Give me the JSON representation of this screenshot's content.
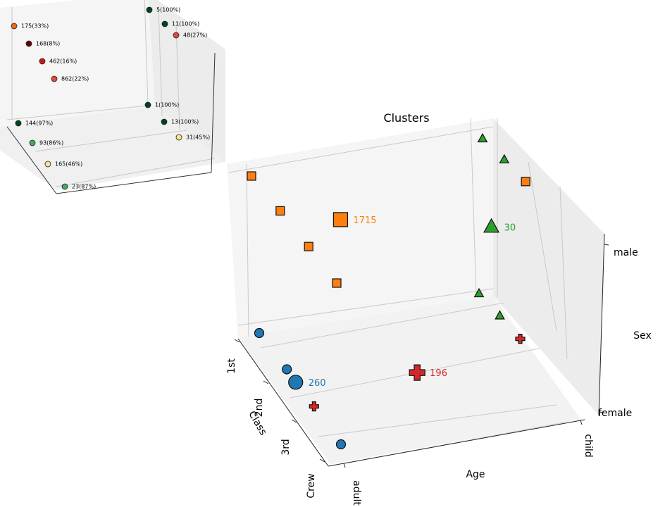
{
  "chart_data": [
    {
      "type": "scatter",
      "title": "",
      "axes": {
        "x": {
          "label": "",
          "ticks": []
        },
        "y": {
          "label": "",
          "ticks": []
        },
        "z": {
          "label": "",
          "ticks": []
        }
      },
      "points": [
        {
          "label": "5(100%)",
          "class": "1st",
          "age": "child",
          "sex": "male",
          "count": 5,
          "survival_pct": 100,
          "color": "#00441b"
        },
        {
          "label": "11(100%)",
          "class": "2nd",
          "age": "child",
          "sex": "male",
          "count": 11,
          "survival_pct": 100,
          "color": "#00441b"
        },
        {
          "label": "48(27%)",
          "class": "3rd",
          "age": "child",
          "sex": "male",
          "count": 48,
          "survival_pct": 27,
          "color": "#e34a33"
        },
        {
          "label": "175(33%)",
          "class": "1st",
          "age": "adult",
          "sex": "male",
          "count": 175,
          "survival_pct": 33,
          "color": "#f16913"
        },
        {
          "label": "168(8%)",
          "class": "2nd",
          "age": "adult",
          "sex": "male",
          "count": 168,
          "survival_pct": 8,
          "color": "#67000d"
        },
        {
          "label": "462(16%)",
          "class": "3rd",
          "age": "adult",
          "sex": "male",
          "count": 462,
          "survival_pct": 16,
          "color": "#cb181d"
        },
        {
          "label": "862(22%)",
          "class": "Crew",
          "age": "adult",
          "sex": "male",
          "count": 862,
          "survival_pct": 22,
          "color": "#e34a33"
        },
        {
          "label": "1(100%)",
          "class": "1st",
          "age": "child",
          "sex": "female",
          "count": 1,
          "survival_pct": 100,
          "color": "#00441b"
        },
        {
          "label": "13(100%)",
          "class": "2nd",
          "age": "child",
          "sex": "female",
          "count": 13,
          "survival_pct": 100,
          "color": "#00441b"
        },
        {
          "label": "31(45%)",
          "class": "3rd",
          "age": "child",
          "sex": "female",
          "count": 31,
          "survival_pct": 45,
          "color": "#fee391"
        },
        {
          "label": "144(97%)",
          "class": "1st",
          "age": "adult",
          "sex": "female",
          "count": 144,
          "survival_pct": 97,
          "color": "#00441b"
        },
        {
          "label": "93(86%)",
          "class": "2nd",
          "age": "adult",
          "sex": "female",
          "count": 93,
          "survival_pct": 86,
          "color": "#41ab5d"
        },
        {
          "label": "165(46%)",
          "class": "3rd",
          "age": "adult",
          "sex": "female",
          "count": 165,
          "survival_pct": 46,
          "color": "#fee391"
        },
        {
          "label": "23(87%)",
          "class": "Crew",
          "age": "adult",
          "sex": "female",
          "count": 23,
          "survival_pct": 87,
          "color": "#41ab5d"
        }
      ]
    },
    {
      "type": "scatter",
      "title": "Clusters",
      "axes": {
        "x": {
          "label": "Age",
          "ticks": [
            "adult",
            "child"
          ]
        },
        "y": {
          "label": "Class",
          "ticks": [
            "1st",
            "2nd",
            "3rd",
            "Crew"
          ]
        },
        "z": {
          "label": "Sex",
          "ticks": [
            "female",
            "male"
          ]
        }
      },
      "clusters": [
        {
          "id": "c-orange",
          "marker": "square",
          "color": "#ff7f0e",
          "size_label": "1715",
          "members": [
            {
              "class": "1st",
              "age": "adult",
              "sex": "male"
            },
            {
              "class": "2nd",
              "age": "adult",
              "sex": "male"
            },
            {
              "class": "3rd",
              "age": "adult",
              "sex": "male"
            },
            {
              "class": "Crew",
              "age": "adult",
              "sex": "male"
            },
            {
              "class": "3rd",
              "age": "child",
              "sex": "male"
            }
          ]
        },
        {
          "id": "c-green",
          "marker": "triangle",
          "color": "#2ca02c",
          "size_label": "30",
          "members": [
            {
              "class": "1st",
              "age": "child",
              "sex": "male"
            },
            {
              "class": "2nd",
              "age": "child",
              "sex": "male"
            },
            {
              "class": "1st",
              "age": "child",
              "sex": "female"
            },
            {
              "class": "2nd",
              "age": "child",
              "sex": "female"
            }
          ]
        },
        {
          "id": "c-blue",
          "marker": "circle",
          "color": "#1f77b4",
          "size_label": "260",
          "members": [
            {
              "class": "1st",
              "age": "adult",
              "sex": "female"
            },
            {
              "class": "2nd",
              "age": "adult",
              "sex": "female"
            },
            {
              "class": "Crew",
              "age": "adult",
              "sex": "female"
            }
          ]
        },
        {
          "id": "c-red",
          "marker": "plus",
          "color": "#d62728",
          "size_label": "196",
          "members": [
            {
              "class": "3rd",
              "age": "adult",
              "sex": "female"
            },
            {
              "class": "3rd",
              "age": "child",
              "sex": "female"
            }
          ]
        }
      ]
    }
  ]
}
